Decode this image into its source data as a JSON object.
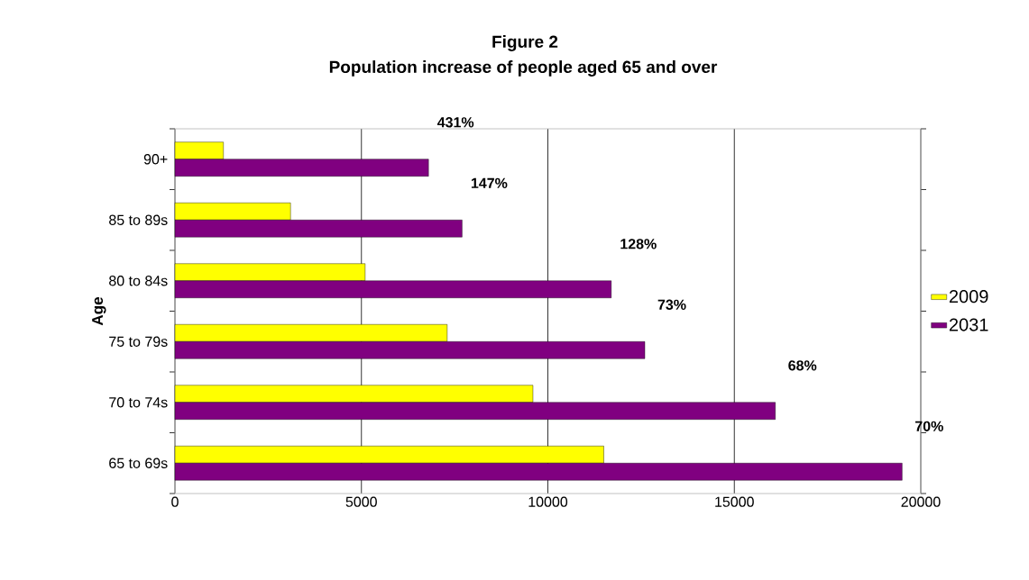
{
  "chart_data": {
    "type": "bar",
    "orientation": "horizontal",
    "title": "Figure 2",
    "subtitle": "Population increase of people aged 65 and over",
    "ylabel": "Age",
    "categories": [
      "90+",
      "85 to 89s",
      "80 to 84s",
      "75 to 79s",
      "70 to 74s",
      "65 to 69s"
    ],
    "series": [
      {
        "name": "2009",
        "color": "#ffff00",
        "values": [
          1300,
          3100,
          5100,
          7300,
          9600,
          11500
        ]
      },
      {
        "name": "2031",
        "color": "#800080",
        "values": [
          6800,
          7700,
          11700,
          12600,
          16100,
          19500
        ]
      }
    ],
    "xlim": [
      0,
      20000
    ],
    "xticks": [
      0,
      5000,
      10000,
      15000,
      20000
    ],
    "grid": "x",
    "legend": "right",
    "annotations": [
      {
        "text": "431%",
        "x": 6800,
        "y": "90+"
      },
      {
        "text": "147%",
        "x": 7700,
        "y": "85 to 89s"
      },
      {
        "text": "128%",
        "x": 11700,
        "y": "80 to 84s"
      },
      {
        "text": "73%",
        "x": 12600,
        "y": "75 to 79s"
      },
      {
        "text": "68%",
        "x": 16100,
        "y": "70 to 74s"
      },
      {
        "text": "70%",
        "x": 19500,
        "y": "65 to 69s"
      }
    ]
  }
}
